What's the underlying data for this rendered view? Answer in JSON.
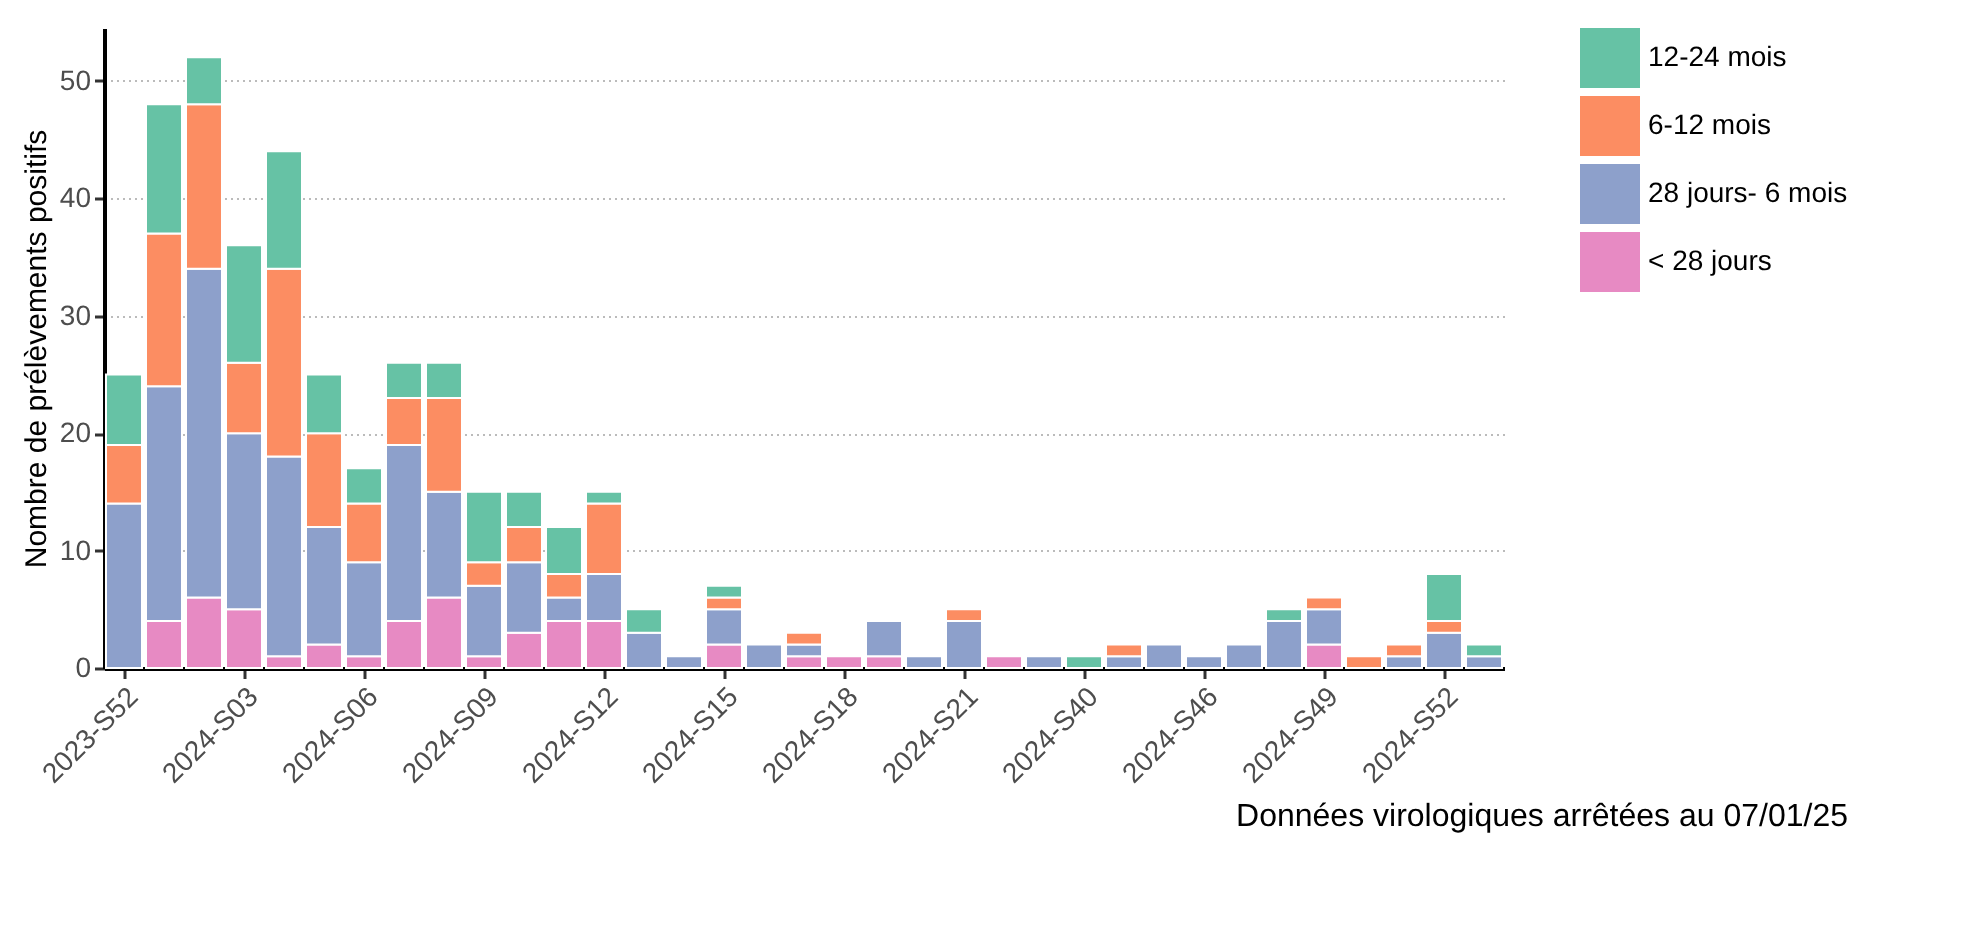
{
  "chart_data": {
    "type": "bar",
    "stacked": true,
    "ylabel": "Nombre de prélèvements positifs",
    "annotations": [
      "Données virologiques arrêtées au 07/01/25"
    ],
    "categories": [
      "2023-S52",
      null,
      null,
      "2024-S03",
      null,
      null,
      "2024-S06",
      null,
      null,
      "2024-S09",
      null,
      null,
      "2024-S12",
      null,
      null,
      "2024-S15",
      null,
      null,
      "2024-S18",
      null,
      null,
      "2024-S21",
      null,
      null,
      "2024-S40",
      null,
      null,
      "2024-S46",
      null,
      null,
      "2024-S49",
      null,
      null,
      "2024-S52",
      null
    ],
    "series": [
      {
        "name": "< 28 jours",
        "color": "#e78ac3",
        "values": [
          0,
          4,
          6,
          5,
          1,
          2,
          1,
          4,
          6,
          1,
          3,
          4,
          4,
          0,
          0,
          2,
          0,
          1,
          1,
          1,
          0,
          0,
          1,
          0,
          0,
          0,
          0,
          0,
          0,
          0,
          2,
          0,
          0,
          0,
          0
        ]
      },
      {
        "name": "28 jours- 6 mois",
        "color": "#8da0cb",
        "values": [
          14,
          20,
          28,
          15,
          17,
          10,
          8,
          15,
          9,
          6,
          6,
          2,
          4,
          3,
          1,
          3,
          2,
          1,
          0,
          3,
          1,
          4,
          0,
          1,
          0,
          1,
          2,
          1,
          2,
          4,
          3,
          0,
          1,
          3,
          1
        ]
      },
      {
        "name": "6-12 mois",
        "color": "#fc8d62",
        "values": [
          5,
          13,
          14,
          6,
          16,
          8,
          5,
          4,
          8,
          2,
          3,
          2,
          6,
          0,
          0,
          1,
          0,
          1,
          0,
          0,
          0,
          1,
          0,
          0,
          0,
          1,
          0,
          0,
          0,
          0,
          1,
          1,
          1,
          1,
          0
        ]
      },
      {
        "name": "12-24 mois",
        "color": "#66c2a5",
        "values": [
          6,
          11,
          4,
          10,
          10,
          5,
          3,
          3,
          3,
          6,
          3,
          4,
          1,
          2,
          0,
          1,
          0,
          0,
          0,
          0,
          0,
          0,
          0,
          0,
          1,
          0,
          0,
          0,
          0,
          1,
          0,
          0,
          0,
          4,
          1
        ]
      }
    ],
    "ylim": [
      0,
      54.5
    ],
    "yticks": [
      0,
      10,
      20,
      30,
      40,
      50
    ],
    "grid": "y",
    "legend": "right"
  }
}
